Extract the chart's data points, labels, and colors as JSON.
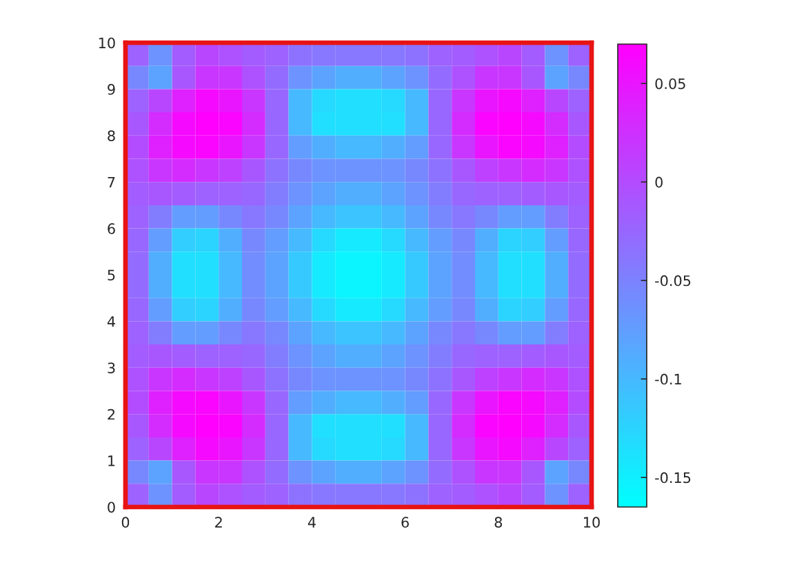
{
  "chart_data": {
    "type": "heatmap",
    "xlim": [
      0,
      10
    ],
    "ylim": [
      0,
      10
    ],
    "xticks": [
      0,
      2,
      4,
      6,
      8,
      10
    ],
    "yticks": [
      0,
      1,
      2,
      3,
      4,
      5,
      6,
      7,
      8,
      9,
      10
    ],
    "clim": [
      -0.165,
      0.07
    ],
    "cticks": [
      -0.15,
      -0.1,
      -0.05,
      0,
      0.05
    ],
    "colors": [
      "#00ffff",
      "#ff00ff"
    ],
    "cells": [
      [
        -0.02,
        -0.065,
        -0.015,
        0.005,
        -0.005,
        -0.015,
        -0.02,
        -0.035,
        -0.04,
        -0.04,
        -0.04,
        -0.04,
        -0.035,
        -0.02,
        -0.015,
        -0.005,
        0.005,
        -0.015,
        -0.065,
        -0.02
      ],
      [
        -0.055,
        -0.08,
        -0.01,
        0.02,
        0.02,
        -0.005,
        -0.03,
        -0.065,
        -0.08,
        -0.09,
        -0.09,
        -0.08,
        -0.065,
        -0.03,
        -0.005,
        0.02,
        0.02,
        -0.01,
        -0.08,
        -0.055
      ],
      [
        -0.02,
        0.005,
        0.04,
        0.06,
        0.05,
        0.02,
        -0.025,
        -0.1,
        -0.13,
        -0.135,
        -0.135,
        -0.13,
        -0.1,
        -0.025,
        0.02,
        0.05,
        0.06,
        0.04,
        0.005,
        -0.02
      ],
      [
        -0.01,
        0.03,
        0.06,
        0.07,
        0.065,
        0.03,
        -0.025,
        -0.1,
        -0.135,
        -0.135,
        -0.135,
        -0.135,
        -0.1,
        -0.025,
        0.03,
        0.065,
        0.07,
        0.06,
        0.03,
        -0.01
      ],
      [
        0,
        0.04,
        0.06,
        0.065,
        0.05,
        0.02,
        -0.025,
        -0.075,
        -0.09,
        -0.1,
        -0.1,
        -0.09,
        -0.075,
        -0.025,
        0.02,
        0.05,
        0.065,
        0.06,
        0.04,
        0
      ],
      [
        -0.005,
        0.02,
        0.03,
        0.02,
        0.01,
        -0.01,
        -0.035,
        -0.055,
        -0.065,
        -0.065,
        -0.065,
        -0.065,
        -0.055,
        -0.035,
        -0.01,
        0.01,
        0.02,
        0.03,
        0.02,
        -0.005
      ],
      [
        -0.015,
        -0.01,
        -0.015,
        -0.02,
        -0.02,
        -0.025,
        -0.045,
        -0.065,
        -0.08,
        -0.09,
        -0.09,
        -0.08,
        -0.065,
        -0.045,
        -0.025,
        -0.02,
        -0.02,
        -0.015,
        -0.01,
        -0.015
      ],
      [
        -0.02,
        -0.045,
        -0.075,
        -0.075,
        -0.055,
        -0.04,
        -0.055,
        -0.08,
        -0.1,
        -0.11,
        -0.11,
        -0.1,
        -0.08,
        -0.055,
        -0.04,
        -0.055,
        -0.075,
        -0.075,
        -0.045,
        -0.02
      ],
      [
        -0.025,
        -0.075,
        -0.12,
        -0.125,
        -0.09,
        -0.055,
        -0.075,
        -0.1,
        -0.13,
        -0.145,
        -0.145,
        -0.13,
        -0.1,
        -0.075,
        -0.055,
        -0.09,
        -0.125,
        -0.12,
        -0.075,
        -0.025
      ],
      [
        -0.03,
        -0.09,
        -0.135,
        -0.135,
        -0.1,
        -0.06,
        -0.08,
        -0.115,
        -0.145,
        -0.155,
        -0.155,
        -0.145,
        -0.115,
        -0.08,
        -0.06,
        -0.1,
        -0.135,
        -0.135,
        -0.09,
        -0.03
      ],
      [
        -0.03,
        -0.09,
        -0.135,
        -0.135,
        -0.1,
        -0.06,
        -0.08,
        -0.115,
        -0.145,
        -0.155,
        -0.155,
        -0.145,
        -0.115,
        -0.08,
        -0.06,
        -0.1,
        -0.135,
        -0.135,
        -0.09,
        -0.03
      ],
      [
        -0.025,
        -0.075,
        -0.12,
        -0.125,
        -0.09,
        -0.055,
        -0.075,
        -0.1,
        -0.13,
        -0.145,
        -0.145,
        -0.13,
        -0.1,
        -0.075,
        -0.055,
        -0.09,
        -0.125,
        -0.12,
        -0.075,
        -0.025
      ],
      [
        -0.02,
        -0.045,
        -0.075,
        -0.075,
        -0.055,
        -0.04,
        -0.055,
        -0.08,
        -0.1,
        -0.11,
        -0.11,
        -0.1,
        -0.08,
        -0.055,
        -0.04,
        -0.055,
        -0.075,
        -0.075,
        -0.045,
        -0.02
      ],
      [
        -0.015,
        -0.01,
        -0.015,
        -0.02,
        -0.02,
        -0.025,
        -0.045,
        -0.065,
        -0.08,
        -0.09,
        -0.09,
        -0.08,
        -0.065,
        -0.045,
        -0.025,
        -0.02,
        -0.02,
        -0.015,
        -0.01,
        -0.015
      ],
      [
        -0.005,
        0.02,
        0.03,
        0.02,
        0.01,
        -0.01,
        -0.035,
        -0.055,
        -0.065,
        -0.065,
        -0.065,
        -0.065,
        -0.055,
        -0.035,
        -0.01,
        0.01,
        0.02,
        0.03,
        0.02,
        -0.005
      ],
      [
        0,
        0.04,
        0.06,
        0.065,
        0.05,
        0.02,
        -0.025,
        -0.075,
        -0.09,
        -0.1,
        -0.1,
        -0.09,
        -0.075,
        -0.025,
        0.02,
        0.05,
        0.065,
        0.06,
        0.04,
        0
      ],
      [
        -0.01,
        0.03,
        0.06,
        0.07,
        0.065,
        0.03,
        -0.025,
        -0.1,
        -0.135,
        -0.135,
        -0.135,
        -0.135,
        -0.1,
        -0.025,
        0.03,
        0.065,
        0.07,
        0.06,
        0.03,
        -0.01
      ],
      [
        -0.02,
        0.005,
        0.04,
        0.06,
        0.05,
        0.02,
        -0.025,
        -0.1,
        -0.13,
        -0.135,
        -0.135,
        -0.13,
        -0.1,
        -0.025,
        0.02,
        0.05,
        0.06,
        0.04,
        0.005,
        -0.02
      ],
      [
        -0.055,
        -0.08,
        -0.01,
        0.02,
        0.02,
        -0.005,
        -0.03,
        -0.065,
        -0.08,
        -0.09,
        -0.09,
        -0.08,
        -0.065,
        -0.03,
        -0.005,
        0.02,
        0.02,
        -0.01,
        -0.08,
        -0.055
      ],
      [
        -0.02,
        -0.065,
        -0.015,
        0.005,
        -0.005,
        -0.015,
        -0.02,
        -0.035,
        -0.04,
        -0.04,
        -0.04,
        -0.04,
        -0.035,
        -0.02,
        -0.015,
        -0.005,
        0.005,
        -0.015,
        -0.065,
        -0.02
      ]
    ]
  }
}
